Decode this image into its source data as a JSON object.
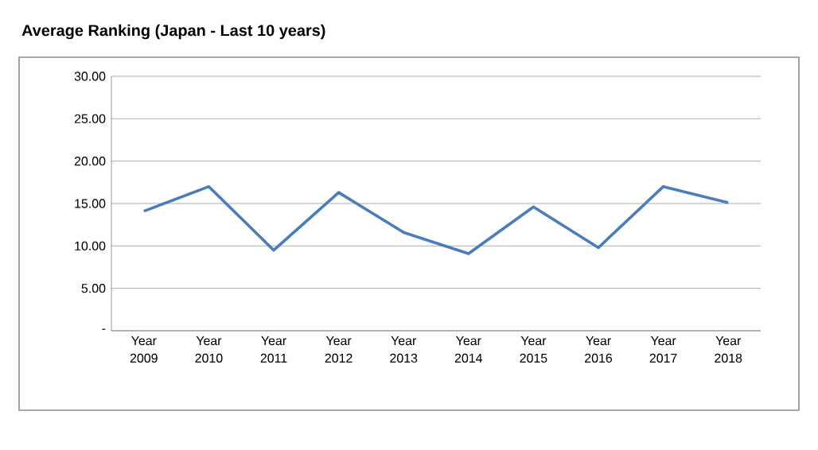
{
  "chart_data": {
    "type": "line",
    "title": "Average Ranking (Japan - Last 10 years)",
    "categories": [
      "Year 2009",
      "Year 2010",
      "Year 2011",
      "Year 2012",
      "Year 2013",
      "Year 2014",
      "Year 2015",
      "Year 2016",
      "Year 2017",
      "Year 2018"
    ],
    "values": [
      14.1,
      17.0,
      9.5,
      16.3,
      11.6,
      9.1,
      14.6,
      9.8,
      17.0,
      15.1
    ],
    "color": "#4a7ebb",
    "ylim": [
      0,
      30
    ],
    "yticks": [
      {
        "value": 0,
        "label": "-"
      },
      {
        "value": 5,
        "label": "5.00"
      },
      {
        "value": 10,
        "label": "10.00"
      },
      {
        "value": 15,
        "label": "15.00"
      },
      {
        "value": 20,
        "label": "20.00"
      },
      {
        "value": 25,
        "label": "25.00"
      },
      {
        "value": 30,
        "label": "30.00"
      }
    ],
    "grid": "y",
    "marker": "none",
    "line_style": "solid"
  }
}
